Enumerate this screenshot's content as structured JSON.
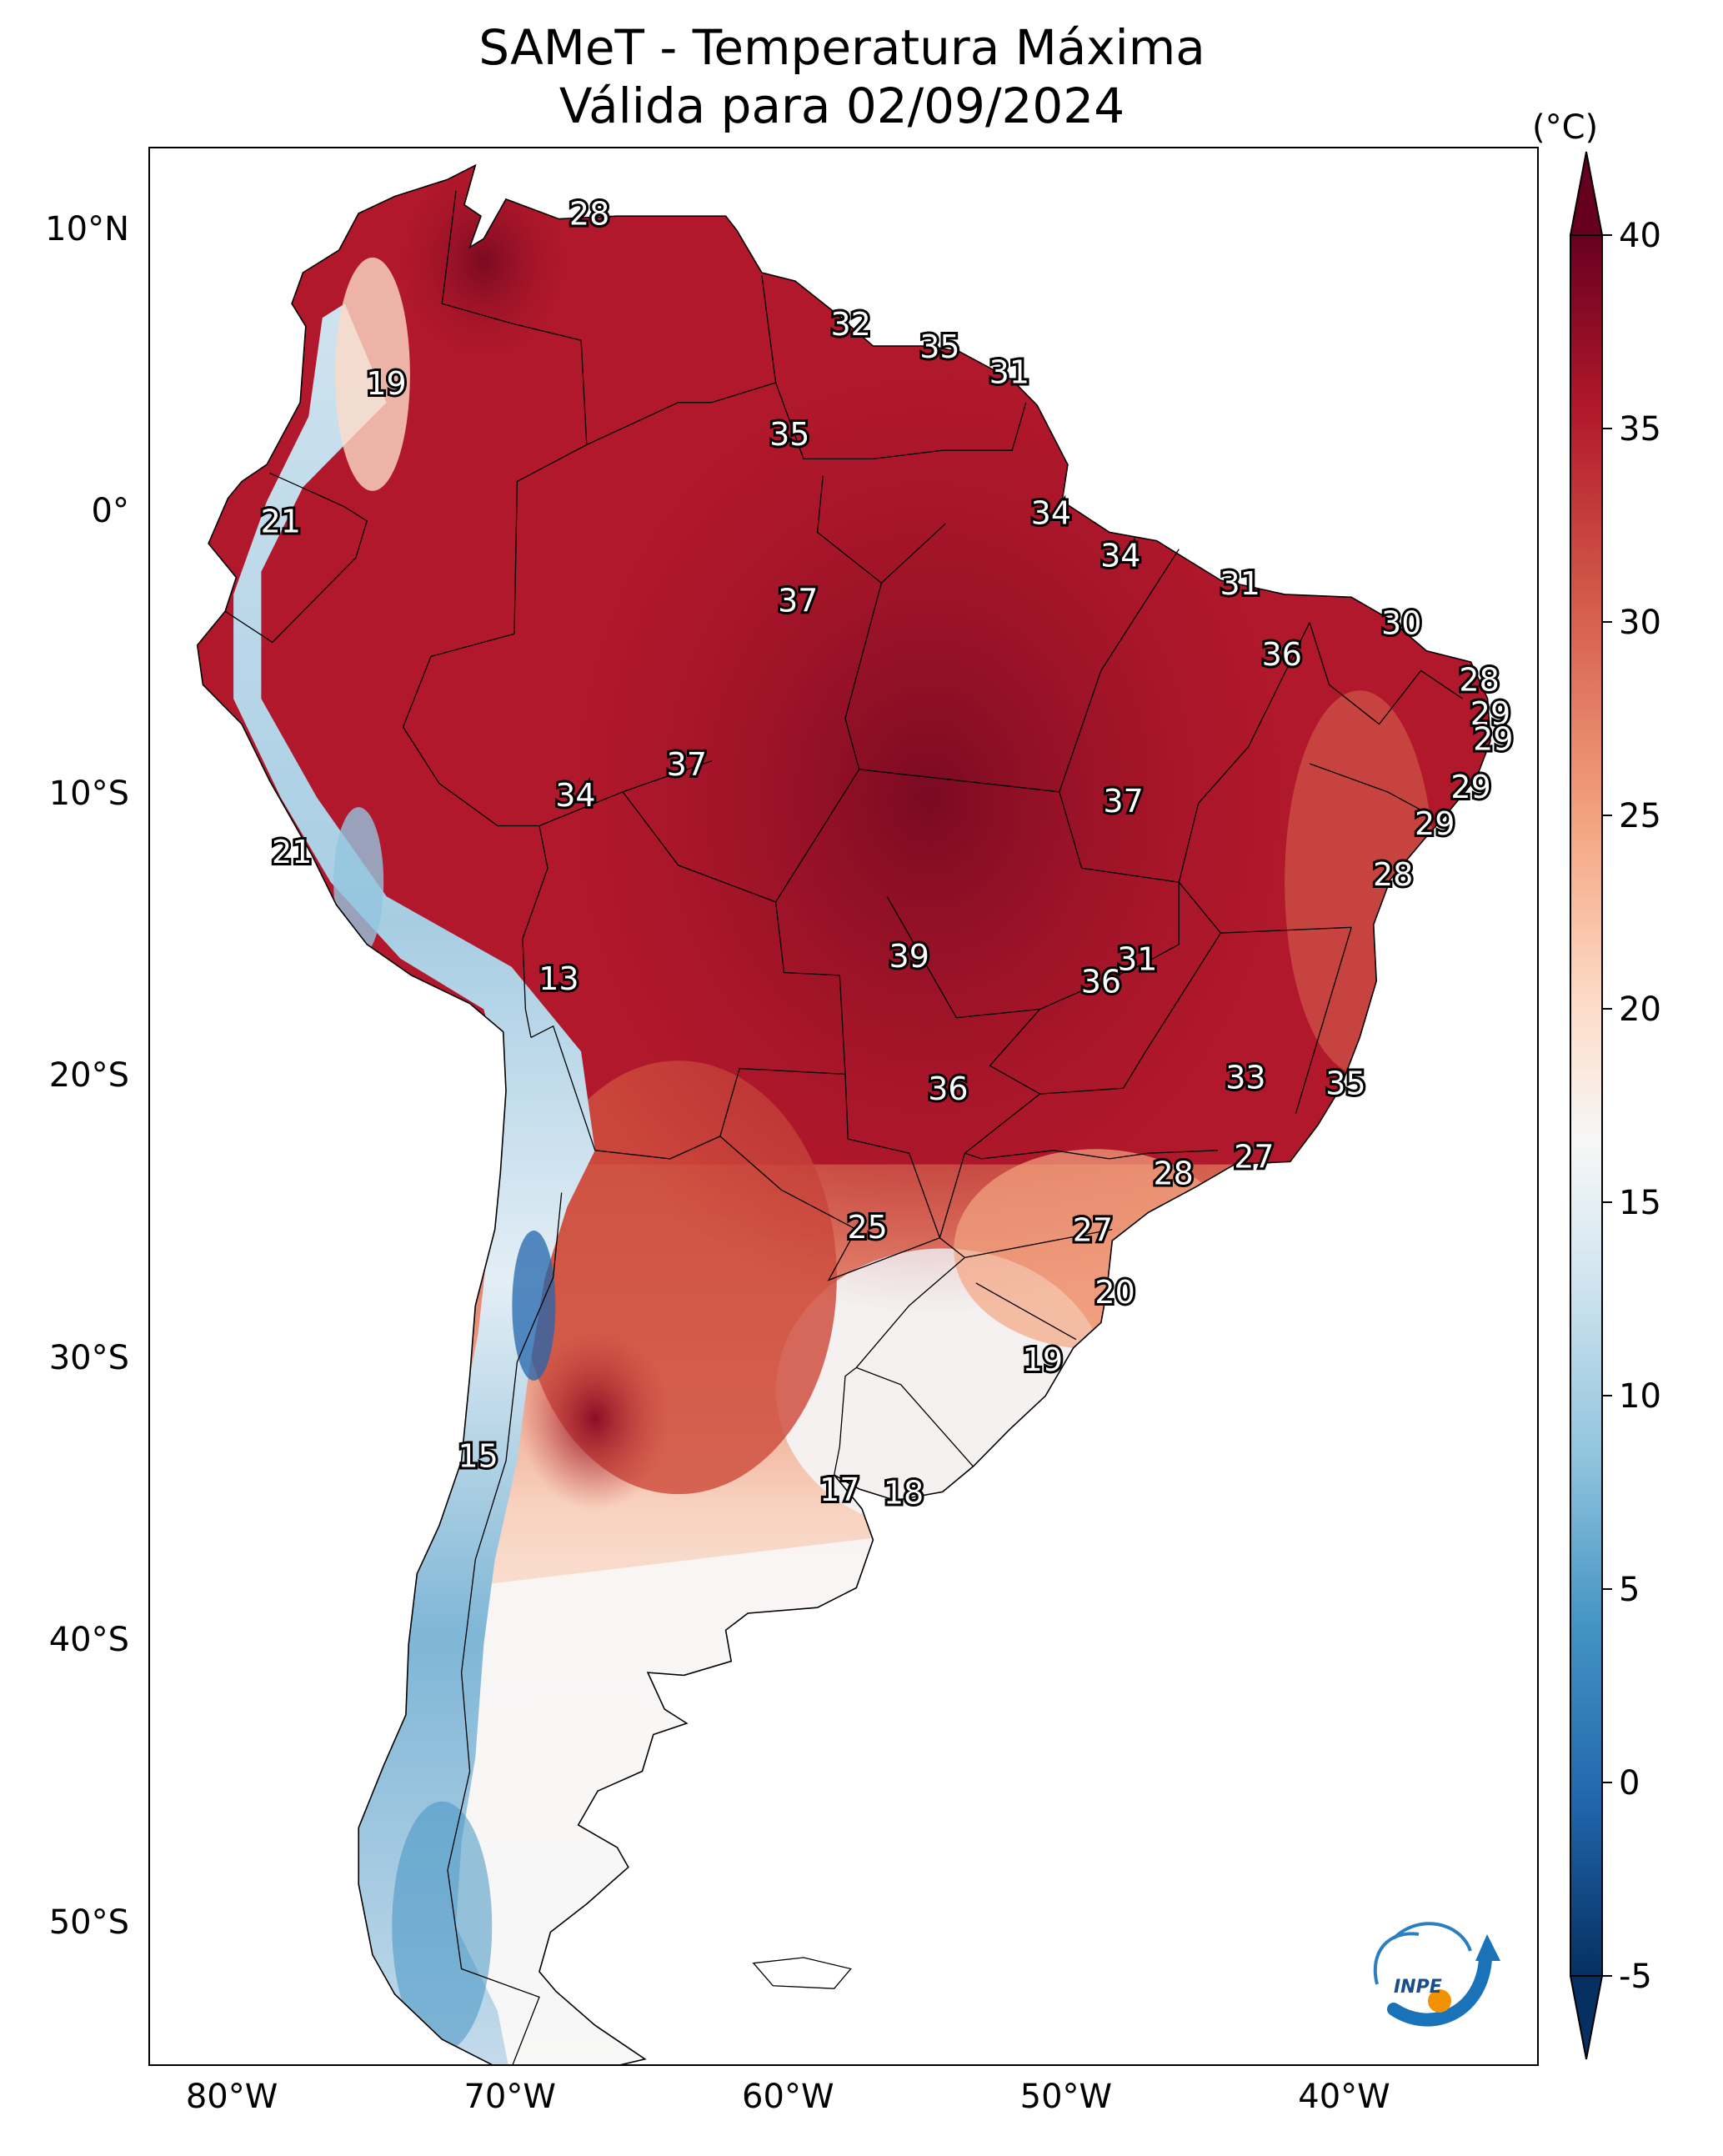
{
  "title": {
    "line1": "SAMeT - Temperatura Máxima",
    "line2": "Válida para 02/09/2024"
  },
  "axes": {
    "lat_ticks": [
      "10°N",
      "0°",
      "10°S",
      "20°S",
      "30°S",
      "40°S",
      "50°S"
    ],
    "lon_ticks": [
      "80°W",
      "70°W",
      "60°W",
      "50°W",
      "40°W"
    ],
    "lat_values": [
      10,
      0,
      -10,
      -20,
      -30,
      -40,
      -50
    ],
    "lon_values": [
      -80,
      -70,
      -60,
      -50,
      -40
    ],
    "lon_range": [
      -83,
      -33
    ],
    "lat_range": [
      -55,
      13
    ]
  },
  "colorbar": {
    "unit": "(°C)",
    "tick_labels": [
      "40",
      "35",
      "30",
      "25",
      "20",
      "15",
      "10",
      "5",
      "0",
      "-5"
    ],
    "tick_values": [
      40,
      35,
      30,
      25,
      20,
      15,
      10,
      5,
      0,
      -5
    ],
    "range": [
      -5,
      40
    ],
    "colors": {
      "max": "#67001f",
      "warm": "#b2182b",
      "mid_warm": "#d6604d",
      "light_warm": "#f4a582",
      "pale_warm": "#fddbc7",
      "neutral": "#f7f7f7",
      "pale_cool": "#d1e5f0",
      "light_cool": "#92c5de",
      "mid_cool": "#4393c3",
      "cool": "#2166ac",
      "min": "#053061"
    }
  },
  "temperature_labels": [
    {
      "text": "28",
      "lon": -67.2,
      "lat": 10.6
    },
    {
      "text": "19",
      "lon": -74.5,
      "lat": 4.6
    },
    {
      "text": "32",
      "lon": -57.8,
      "lat": 6.7
    },
    {
      "text": "35",
      "lon": -54.6,
      "lat": 5.9
    },
    {
      "text": "31",
      "lon": -52.1,
      "lat": 5.0
    },
    {
      "text": "35",
      "lon": -60.0,
      "lat": 2.8
    },
    {
      "text": "21",
      "lon": -78.3,
      "lat": -0.3
    },
    {
      "text": "34",
      "lon": -50.6,
      "lat": 0.0
    },
    {
      "text": "34",
      "lon": -48.1,
      "lat": -1.5
    },
    {
      "text": "31",
      "lon": -43.8,
      "lat": -2.5
    },
    {
      "text": "37",
      "lon": -59.7,
      "lat": -3.1
    },
    {
      "text": "30",
      "lon": -38.0,
      "lat": -3.9
    },
    {
      "text": "36",
      "lon": -42.3,
      "lat": -5.0
    },
    {
      "text": "28",
      "lon": -35.2,
      "lat": -5.9
    },
    {
      "text": "29",
      "lon": -34.8,
      "lat": -7.1
    },
    {
      "text": "29",
      "lon": -34.7,
      "lat": -8.0
    },
    {
      "text": "37",
      "lon": -63.7,
      "lat": -8.9
    },
    {
      "text": "34",
      "lon": -67.7,
      "lat": -10.0
    },
    {
      "text": "37",
      "lon": -48.0,
      "lat": -10.2
    },
    {
      "text": "29",
      "lon": -35.5,
      "lat": -9.7
    },
    {
      "text": "29",
      "lon": -36.8,
      "lat": -11.0
    },
    {
      "text": "21",
      "lon": -77.9,
      "lat": -12.0
    },
    {
      "text": "28",
      "lon": -38.3,
      "lat": -12.8
    },
    {
      "text": "39",
      "lon": -55.7,
      "lat": -15.7
    },
    {
      "text": "31",
      "lon": -47.5,
      "lat": -15.8
    },
    {
      "text": "36",
      "lon": -48.8,
      "lat": -16.6
    },
    {
      "text": "13",
      "lon": -68.3,
      "lat": -16.5
    },
    {
      "text": "33",
      "lon": -43.6,
      "lat": -20.0
    },
    {
      "text": "35",
      "lon": -40.0,
      "lat": -20.2
    },
    {
      "text": "36",
      "lon": -54.3,
      "lat": -20.4
    },
    {
      "text": "27",
      "lon": -43.3,
      "lat": -22.8
    },
    {
      "text": "28",
      "lon": -46.2,
      "lat": -23.4
    },
    {
      "text": "25",
      "lon": -57.2,
      "lat": -25.3
    },
    {
      "text": "27",
      "lon": -49.1,
      "lat": -25.4
    },
    {
      "text": "20",
      "lon": -48.3,
      "lat": -27.6
    },
    {
      "text": "19",
      "lon": -50.9,
      "lat": -30.0
    },
    {
      "text": "15",
      "lon": -71.2,
      "lat": -33.4
    },
    {
      "text": "17",
      "lon": -58.2,
      "lat": -34.6
    },
    {
      "text": "18",
      "lon": -55.9,
      "lat": -34.7
    }
  ],
  "logo": {
    "text": "INPE"
  }
}
